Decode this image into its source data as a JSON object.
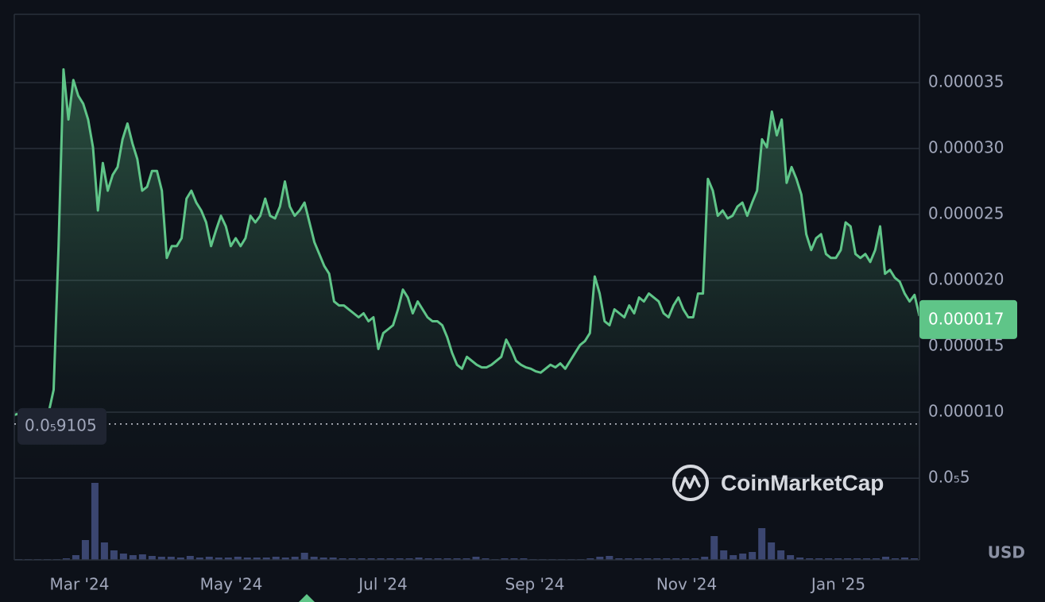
{
  "chart_data": {
    "type": "area",
    "x_tick_labels": [
      "Mar '24",
      "May '24",
      "Jul '24",
      "Sep '24",
      "Nov '24",
      "Jan '25"
    ],
    "series": [
      {
        "color": "#5fc588",
        "values": [
          9.8e-06,
          9.9e-06,
          9.8e-06,
          9.9e-06,
          9.9e-06,
          9.9e-06,
          9.8e-06,
          1e-05,
          1.17e-05,
          2.26e-05,
          3.6e-05,
          3.22e-05,
          3.52e-05,
          3.4e-05,
          3.34e-05,
          3.22e-05,
          3.01e-05,
          2.53e-05,
          2.89e-05,
          2.68e-05,
          2.8e-05,
          2.86e-05,
          3.07e-05,
          3.19e-05,
          3.04e-05,
          2.92e-05,
          2.68e-05,
          2.71e-05,
          2.83e-05,
          2.83e-05,
          2.68e-05,
          2.17e-05,
          2.26e-05,
          2.26e-05,
          2.32e-05,
          2.62e-05,
          2.68e-05,
          2.59e-05,
          2.53e-05,
          2.44e-05,
          2.26e-05,
          2.38e-05,
          2.49e-05,
          2.41e-05,
          2.26e-05,
          2.32e-05,
          2.26e-05,
          2.32e-05,
          2.49e-05,
          2.44e-05,
          2.49e-05,
          2.62e-05,
          2.49e-05,
          2.47e-05,
          2.56e-05,
          2.75e-05,
          2.56e-05,
          2.49e-05,
          2.53e-05,
          2.59e-05,
          2.44e-05,
          2.29e-05,
          2.2e-05,
          2.11e-05,
          2.05e-05,
          1.84e-05,
          1.81e-05,
          1.81e-05,
          1.78e-05,
          1.75e-05,
          1.72e-05,
          1.75e-05,
          1.69e-05,
          1.72e-05,
          1.48e-05,
          1.6e-05,
          1.63e-05,
          1.66e-05,
          1.78e-05,
          1.93e-05,
          1.87e-05,
          1.75e-05,
          1.84e-05,
          1.78e-05,
          1.72e-05,
          1.69e-05,
          1.69e-05,
          1.66e-05,
          1.57e-05,
          1.45e-05,
          1.36e-05,
          1.33e-05,
          1.42e-05,
          1.39e-05,
          1.36e-05,
          1.34e-05,
          1.34e-05,
          1.36e-05,
          1.39e-05,
          1.42e-05,
          1.55e-05,
          1.48e-05,
          1.39e-05,
          1.36e-05,
          1.34e-05,
          1.33e-05,
          1.31e-05,
          1.3e-05,
          1.33e-05,
          1.36e-05,
          1.34e-05,
          1.37e-05,
          1.33e-05,
          1.39e-05,
          1.45e-05,
          1.51e-05,
          1.54e-05,
          1.6e-05,
          2.03e-05,
          1.9e-05,
          1.69e-05,
          1.66e-05,
          1.78e-05,
          1.75e-05,
          1.72e-05,
          1.81e-05,
          1.75e-05,
          1.87e-05,
          1.84e-05,
          1.9e-05,
          1.87e-05,
          1.84e-05,
          1.75e-05,
          1.72e-05,
          1.81e-05,
          1.87e-05,
          1.78e-05,
          1.72e-05,
          1.72e-05,
          1.9e-05,
          1.9e-05,
          2.77e-05,
          2.68e-05,
          2.49e-05,
          2.53e-05,
          2.47e-05,
          2.49e-05,
          2.56e-05,
          2.59e-05,
          2.49e-05,
          2.59e-05,
          2.68e-05,
          3.07e-05,
          3.01e-05,
          3.28e-05,
          3.1e-05,
          3.22e-05,
          2.74e-05,
          2.86e-05,
          2.77e-05,
          2.65e-05,
          2.35e-05,
          2.23e-05,
          2.32e-05,
          2.35e-05,
          2.2e-05,
          2.17e-05,
          2.17e-05,
          2.23e-05,
          2.44e-05,
          2.41e-05,
          2.2e-05,
          2.17e-05,
          2.2e-05,
          2.14e-05,
          2.23e-05,
          2.41e-05,
          2.05e-05,
          2.08e-05,
          2.02e-05,
          1.99e-05,
          1.9e-05,
          1.84e-05,
          1.89e-05,
          1.73e-05
        ]
      }
    ],
    "volume": {
      "color": "#3b4670",
      "values": [
        1,
        1,
        1,
        1,
        1,
        2,
        6,
        25,
        97,
        22,
        12,
        8,
        6,
        7,
        5,
        4,
        4,
        3,
        5,
        3,
        4,
        3,
        3,
        4,
        3,
        3,
        3,
        4,
        3,
        4,
        9,
        4,
        3,
        3,
        2,
        2,
        2,
        2,
        2,
        2,
        2,
        2,
        3,
        2,
        2,
        2,
        2,
        2,
        4,
        2,
        1,
        2,
        2,
        2,
        1,
        1,
        1,
        1,
        1,
        1,
        2,
        4,
        5,
        2,
        2,
        2,
        2,
        2,
        2,
        2,
        2,
        2,
        4,
        30,
        12,
        6,
        8,
        10,
        40,
        22,
        12,
        6,
        3,
        2,
        2,
        2,
        2,
        2,
        2,
        2,
        2,
        4,
        2,
        3,
        2
      ]
    },
    "ylim": [
      -1.2e-06,
      4.018e-05
    ],
    "yticks": [
      3.5e-05,
      {
        "value": 3e-05,
        "label": "0.000030"
      },
      2.5e-05,
      {
        "value": 2e-05,
        "label": "0.000020"
      },
      1.5e-05,
      {
        "value": 1e-05,
        "label": "0.000010"
      },
      {
        "value": 5e-06,
        "label": "0.0₅5"
      }
    ],
    "grid": true,
    "reference": {
      "value": 9.105e-06,
      "label": "0.0₅9105"
    },
    "current_price": 1.7e-05,
    "currency": "USD",
    "watermark": "CoinMarketCap"
  }
}
